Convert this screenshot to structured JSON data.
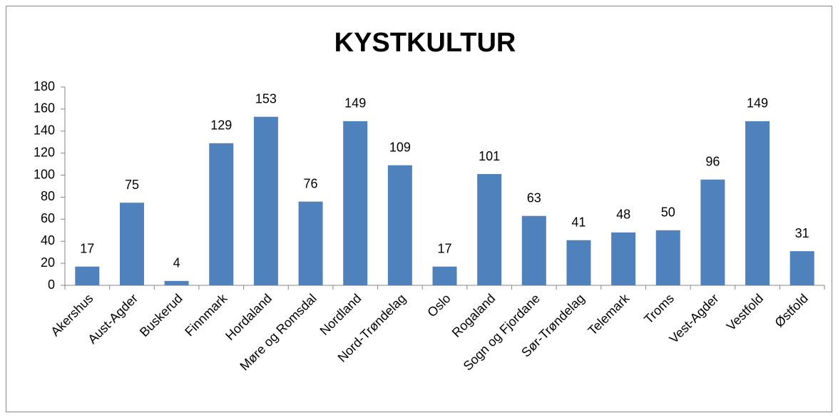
{
  "chart_data": {
    "type": "bar",
    "title": "KYSTKULTUR",
    "categories": [
      "Akershus",
      "Aust-Agder",
      "Buskerud",
      "Finnmark",
      "Hordaland",
      "Møre og Romsdal",
      "Nordland",
      "Nord-Trøndelag",
      "Oslo",
      "Rogaland",
      "Sogn og Fjordane",
      "Sør-Trøndelag",
      "Telemark",
      "Troms",
      "Vest-Agder",
      "Vestfold",
      "Østfold"
    ],
    "values": [
      17,
      75,
      4,
      129,
      153,
      76,
      149,
      109,
      17,
      101,
      63,
      41,
      48,
      50,
      96,
      149,
      31
    ],
    "color": "#4f81bd",
    "ylim": [
      0,
      180
    ],
    "yticks": [
      0,
      20,
      40,
      60,
      80,
      100,
      120,
      140,
      160,
      180
    ],
    "grid": false
  }
}
